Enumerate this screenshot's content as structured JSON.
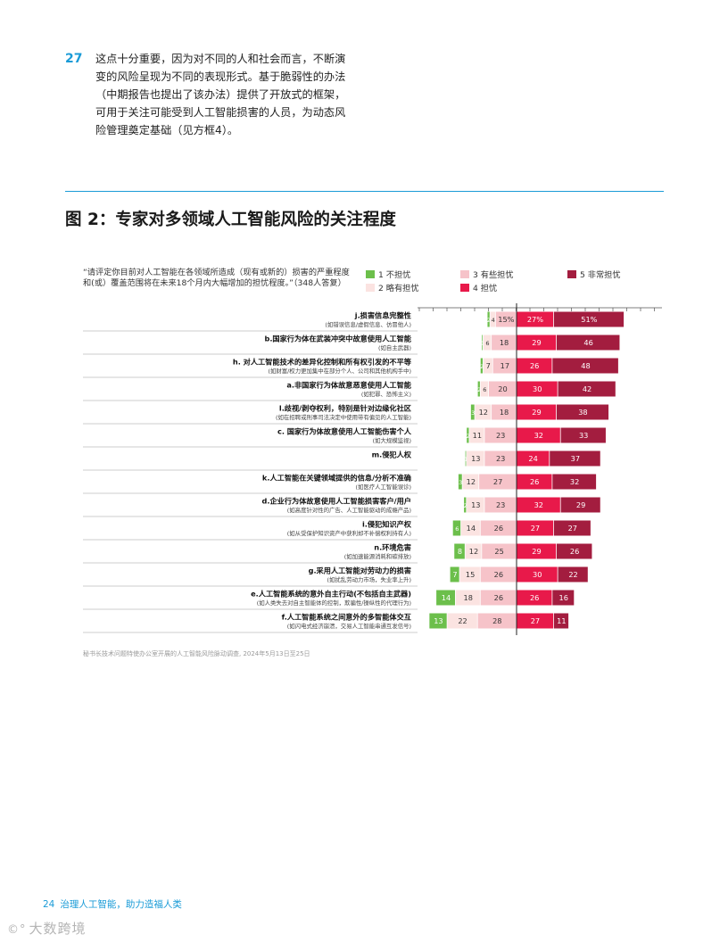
{
  "paragraph": {
    "number": "27",
    "text": "这点十分重要，因为对不同的人和社会而言，不断演变的风险呈现为不同的表现形式。基于脆弱性的办法（中期报告也提出了该办法）提供了开放式的框架，可用于关注可能受到人工智能损害的人员，为动态风险管理奠定基础（见方框4）。"
  },
  "figure_title": "图 2：专家对多领域人工智能风险的关注程度",
  "question": "“请评定你目前对人工智能在各领域所造成（现有或新的）损害的严重程度和(或）覆盖范围将在未来18个月内大幅增加的担忧程度。”（348人答复）",
  "source_note": "秘书长技术问题特使办公室开展的人工智能风险脉动调查, 2024年5月13日至25日",
  "footer": {
    "page": "24",
    "title": "治理人工智能，助力造福人类"
  },
  "watermark": "大数跨境",
  "colors": {
    "level1": "#6cbf4b",
    "level2": "#fbe3e1",
    "level3": "#f6c3c9",
    "level4": "#e8194a",
    "level5": "#a31d3f",
    "accent": "#1a9bd7"
  },
  "chart_data": {
    "type": "bar",
    "layout": "diverging-stacked",
    "legend": [
      {
        "key": "level1",
        "label": "1 不担忧"
      },
      {
        "key": "level2",
        "label": "2 略有担忧"
      },
      {
        "key": "level3",
        "label": "3 有些担忧"
      },
      {
        "key": "level4",
        "label": "4 担忧"
      },
      {
        "key": "level5",
        "label": "5 非常担忧"
      }
    ],
    "rows": [
      {
        "label": "j.损害信息完整性",
        "sub": "(如错误信息/虚假信息、仿冒他人)",
        "values": [
          2,
          4,
          15,
          27,
          51
        ],
        "labels": [
          "2",
          "4",
          "15%",
          "27%",
          "51%"
        ]
      },
      {
        "label": "b.国家行为体在武装冲突中故意使用人工智能",
        "sub": "(如自主武器)",
        "values": [
          1,
          6,
          18,
          29,
          46
        ],
        "labels": [
          "1",
          "6",
          "18",
          "29",
          "46"
        ]
      },
      {
        "label": "h. 对人工智能技术的差异化控制和所有权引发的不平等",
        "sub": "(如财富/权力更加集中在部分个人、公司和其他机构手中)",
        "values": [
          2,
          7,
          17,
          26,
          48
        ],
        "labels": [
          "2",
          "7",
          "17",
          "26",
          "48"
        ]
      },
      {
        "label": "a.非国家行为体故意恶意使用人工智能",
        "sub": "(如犯罪、恐怖主义)",
        "values": [
          2,
          6,
          20,
          30,
          42
        ],
        "labels": [
          "2",
          "6",
          "20",
          "30",
          "42"
        ]
      },
      {
        "label": "l.歧视/剥夺权利，特别是针对边缘化社区",
        "sub": "(如在招聘或刑事司法决定中使用带有偏见的人工智能)",
        "values": [
          3,
          12,
          18,
          29,
          38
        ],
        "labels": [
          "3",
          "12",
          "18",
          "29",
          "38"
        ]
      },
      {
        "label": "c. 国家行为体故意使用人工智能伤害个人",
        "sub": "(如大规模监视)",
        "values": [
          2,
          11,
          23,
          32,
          33
        ],
        "labels": [
          "2",
          "11",
          "23",
          "32",
          "33"
        ]
      },
      {
        "label": "m.侵犯人权",
        "sub": "",
        "values": [
          1,
          13,
          23,
          24,
          37
        ],
        "labels": [
          "1",
          "13",
          "23",
          "24",
          "37"
        ]
      },
      {
        "label": "k.人工智能在关键领域提供的信息/分析不准确",
        "sub": "(如医疗人工智能误诊)",
        "values": [
          3,
          12,
          27,
          26,
          32
        ],
        "labels": [
          "3",
          "12",
          "27",
          "26",
          "32"
        ]
      },
      {
        "label": "d.企业行为体故意使用人工智能损害客户/用户",
        "sub": "(如高度针对性的广告、人工智能驱动的成瘾产品)",
        "values": [
          2,
          13,
          23,
          32,
          29
        ],
        "labels": [
          "2",
          "13",
          "23",
          "32",
          "29"
        ]
      },
      {
        "label": "i.侵犯知识产权",
        "sub": "(如从受保护知识资产中获利却不补偿权利持有人)",
        "values": [
          6,
          14,
          26,
          27,
          27
        ],
        "labels": [
          "6",
          "14",
          "26",
          "27",
          "27"
        ]
      },
      {
        "label": "n.环境危害",
        "sub": "(如加速能源消耗和碳排放)",
        "values": [
          8,
          12,
          25,
          29,
          26
        ],
        "labels": [
          "8",
          "12",
          "25",
          "29",
          "26"
        ]
      },
      {
        "label": "g.采用人工智能对劳动力的损害",
        "sub": "(如扰乱劳动力市场，失业率上升)",
        "values": [
          7,
          15,
          26,
          30,
          22
        ],
        "labels": [
          "7",
          "15",
          "26",
          "30",
          "22"
        ]
      },
      {
        "label": "e.人工智能系统的意外自主行动(不包括自主武器)",
        "sub": "(如人类失去对自主智能体的控制，欺骗性/操纵性的代理行为)",
        "values": [
          14,
          18,
          26,
          26,
          16
        ],
        "labels": [
          "14",
          "18",
          "26",
          "26",
          "16"
        ]
      },
      {
        "label": "f.人工智能系统之间意外的多智能体交互",
        "sub": "(如闪电式经济崩溃，交易人工智能串通互发信号)",
        "values": [
          13,
          22,
          28,
          27,
          11
        ],
        "labels": [
          "13",
          "22",
          "28",
          "27",
          "11"
        ]
      }
    ]
  }
}
